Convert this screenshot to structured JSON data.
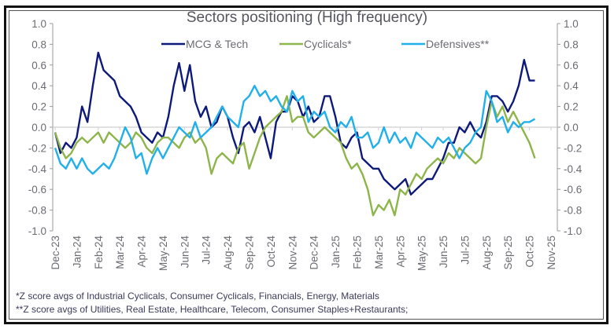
{
  "chart_data": {
    "type": "line",
    "title": "Sectors positioning (High frequency)",
    "xlabel": "",
    "ylabel": "",
    "ylim": [
      -1.0,
      1.0
    ],
    "y_ticks": [
      "1.0",
      "0.8",
      "0.6",
      "0.4",
      "0.2",
      "0.0",
      "-0.2",
      "-0.4",
      "-0.6",
      "-0.8",
      "-1.0"
    ],
    "y_tick_values": [
      1.0,
      0.8,
      0.6,
      0.4,
      0.2,
      0.0,
      -0.2,
      -0.4,
      -0.6,
      -0.8,
      -1.0
    ],
    "secondary_y_ticks": [
      "1.0",
      "0.8",
      "0.6",
      "0.4",
      "0.2",
      "0.0",
      "-0.2",
      "-0.4",
      "-0.6",
      "-0.8",
      "-1.0"
    ],
    "x_tick_labels": [
      "Dec-23",
      "Jan-24",
      "Feb-24",
      "Mar-24",
      "Apr-24",
      "May-24",
      "Jun-24",
      "Jul-24",
      "Aug-24",
      "Sep-24",
      "Oct-24",
      "Nov-24",
      "Dec-24",
      "Jan-25",
      "Feb-25",
      "Mar-25",
      "Apr-25",
      "May-25",
      "Jun-25",
      "Jul-25",
      "Aug-25",
      "Sep-25",
      "Oct-25",
      "Nov-25"
    ],
    "x_range_months": [
      0,
      23
    ],
    "x_unit": "months since Dec-23 (sampled every quarter month)",
    "grid": false,
    "zero_line": true,
    "legend_position": "top",
    "series": [
      {
        "name": "MCG & Tech",
        "color": "#0d1a7a",
        "values": [
          -0.05,
          -0.25,
          -0.15,
          -0.2,
          -0.1,
          0.2,
          0.05,
          0.4,
          0.72,
          0.55,
          0.5,
          0.45,
          0.3,
          0.25,
          0.2,
          0.1,
          -0.05,
          -0.1,
          -0.15,
          -0.05,
          -0.1,
          0.1,
          0.4,
          0.62,
          0.35,
          0.6,
          0.25,
          0.1,
          0.2,
          0.0,
          0.05,
          0.2,
          0.1,
          -0.1,
          -0.25,
          0.0,
          0.05,
          -0.05,
          0.1,
          -0.1,
          -0.3,
          0.05,
          0.15,
          0.15,
          0.3,
          0.25,
          0.1,
          0.2,
          0.05,
          0.1,
          0.3,
          0.3,
          0.1,
          -0.15,
          -0.2,
          -0.1,
          -0.05,
          -0.3,
          -0.35,
          -0.4,
          -0.4,
          -0.5,
          -0.55,
          -0.6,
          -0.55,
          -0.5,
          -0.65,
          -0.6,
          -0.55,
          -0.5,
          -0.5,
          -0.4,
          -0.3,
          -0.15,
          -0.15,
          0.0,
          -0.05,
          0.05,
          -0.05,
          -0.1,
          0.05,
          0.3,
          0.3,
          0.25,
          0.15,
          0.25,
          0.4,
          0.65,
          0.45,
          0.45
        ]
      },
      {
        "name": "Cyclicals*",
        "color": "#8db54a",
        "values": [
          -0.05,
          -0.2,
          -0.3,
          -0.25,
          -0.15,
          -0.1,
          -0.15,
          -0.1,
          -0.05,
          -0.15,
          -0.05,
          -0.1,
          -0.15,
          -0.2,
          -0.15,
          -0.05,
          -0.1,
          -0.2,
          -0.25,
          -0.15,
          -0.1,
          -0.1,
          -0.15,
          -0.2,
          -0.1,
          -0.05,
          -0.15,
          -0.1,
          -0.2,
          -0.45,
          -0.3,
          -0.25,
          -0.3,
          -0.35,
          -0.2,
          -0.15,
          -0.4,
          -0.25,
          -0.1,
          0.0,
          0.05,
          0.1,
          0.15,
          0.3,
          0.05,
          0.1,
          0.1,
          -0.05,
          -0.1,
          -0.05,
          0.0,
          -0.05,
          -0.1,
          -0.15,
          -0.3,
          -0.4,
          -0.35,
          -0.45,
          -0.6,
          -0.85,
          -0.75,
          -0.8,
          -0.7,
          -0.85,
          -0.6,
          -0.65,
          -0.55,
          -0.45,
          -0.5,
          -0.4,
          -0.35,
          -0.3,
          -0.35,
          -0.25,
          -0.3,
          -0.2,
          -0.25,
          -0.3,
          -0.35,
          -0.3,
          0.0,
          0.25,
          0.1,
          0.2,
          0.05,
          0.15,
          0.05,
          -0.05,
          -0.15,
          -0.3
        ]
      },
      {
        "name": "Defensives**",
        "color": "#21b0ea",
        "values": [
          -0.2,
          -0.35,
          -0.4,
          -0.3,
          -0.4,
          -0.3,
          -0.4,
          -0.45,
          -0.4,
          -0.35,
          -0.4,
          -0.3,
          -0.15,
          0.0,
          -0.1,
          -0.3,
          -0.25,
          -0.45,
          -0.3,
          -0.2,
          -0.3,
          -0.2,
          -0.1,
          0.0,
          -0.05,
          -0.1,
          0.05,
          -0.1,
          -0.05,
          0.0,
          0.1,
          0.2,
          0.1,
          0.05,
          0.0,
          0.25,
          0.3,
          0.4,
          0.3,
          0.35,
          0.25,
          0.3,
          0.2,
          0.15,
          0.35,
          0.25,
          0.3,
          0.05,
          0.15,
          0.1,
          0.15,
          0.0,
          -0.05,
          0.05,
          0.0,
          0.1,
          -0.1,
          -0.1,
          -0.05,
          -0.2,
          -0.15,
          0.0,
          -0.15,
          -0.05,
          -0.15,
          -0.1,
          -0.2,
          -0.05,
          -0.1,
          -0.15,
          -0.2,
          -0.1,
          -0.15,
          -0.1,
          -0.2,
          -0.3,
          -0.2,
          -0.15,
          -0.05,
          0.0,
          0.35,
          0.25,
          0.05,
          0.1,
          -0.05,
          0.05,
          0.0,
          0.05,
          0.05,
          0.08
        ]
      }
    ]
  },
  "footnotes": [
    "*Z score avgs of Industrial Cyclicals, Consumer Cyclicals, Financials, Energy, Materials",
    "**Z score avgs of Utilities, Real Estate, Healthcare, Telecom, Consumer Staples+Restaurants;"
  ],
  "colors": {
    "axis": "#9a9a9a",
    "zero_line": "#cfcfcf",
    "frame": "#111111"
  }
}
